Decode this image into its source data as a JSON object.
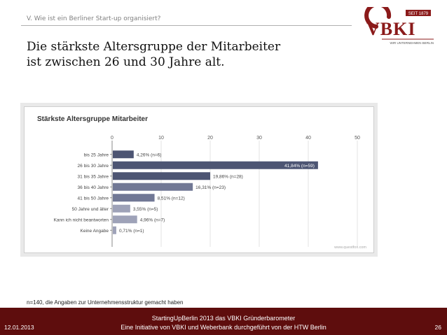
{
  "slide": {
    "section_label": "V. Wie ist ein Berliner Start-up organisiert?",
    "headline_line1": "Die stärkste Altersgruppe der Mitarbeiter",
    "headline_line2": "ist zwischen 26 und 30 Jahre alt.",
    "footnote": "n=140, die Angaben zur Unternehmensstruktur gemacht haben",
    "watermark": "www.questfox.com"
  },
  "logo": {
    "since": "SEIT 1879",
    "name": "VBKI",
    "tagline": "WIR UNTERNEHMEN BERLIN"
  },
  "footer": {
    "date": "12.01.2013",
    "line1": "StartingUpBerlin 2013    das VBKI Gründerbarometer",
    "line2": "Eine Initiative von VBKI und Weberbank durchgeführt von der HTW Berlin",
    "page": "26"
  },
  "colors": {
    "bar_dark": "#4d5573",
    "bar_mid": "#717895",
    "bar_light": "#9ea2b8",
    "footer_bg": "#5e0d0d",
    "logo_red": "#8b1a1a"
  },
  "chart_data": {
    "type": "bar",
    "orientation": "horizontal",
    "title": "Stärkste Altersgruppe Mitarbeiter",
    "xlim": [
      0,
      50
    ],
    "xticks": [
      0,
      10,
      20,
      30,
      40,
      50
    ],
    "grid": true,
    "categories": [
      "bis 25 Jahre",
      "26 bis 30 Jahre",
      "31 bis 35 Jahre",
      "36 bis 40 Jahre",
      "41 bis 50 Jahre",
      "50 Jahre und älter",
      "Kann ich nicht beantworten",
      "Keine Angabe"
    ],
    "values": [
      4.26,
      41.84,
      19.86,
      16.31,
      8.51,
      3.55,
      4.96,
      0.71
    ],
    "labels": [
      "4,26% (n=6)",
      "41,84% (n=59)",
      "19,86% (n=28)",
      "16,31% (n=23)",
      "8,51% (n=12)",
      "3,55% (n=5)",
      "4,96% (n=7)",
      "0,71% (n=1)"
    ]
  }
}
